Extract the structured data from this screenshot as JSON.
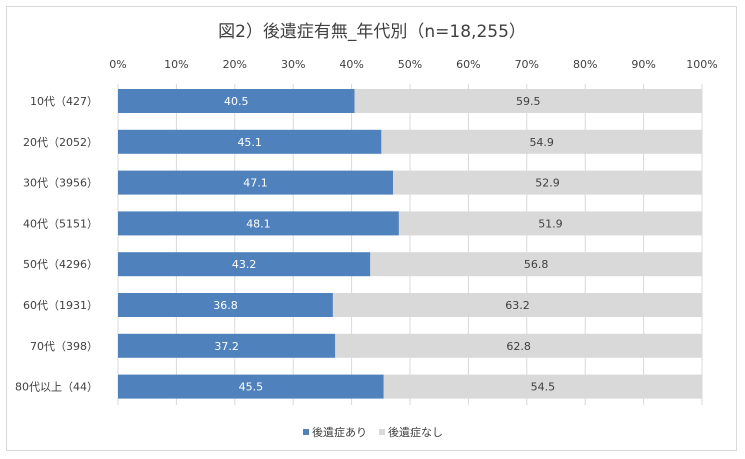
{
  "chart_data": {
    "type": "bar",
    "orientation": "horizontal",
    "stacked": true,
    "title": "図2）後遺症有無_年代別（n=18,255）",
    "categories": [
      "10代（427）",
      "20代（2052）",
      "30代（3956）",
      "40代（5151）",
      "50代（4296）",
      "60代（1931）",
      "70代（398）",
      "80代以上（44）"
    ],
    "series": [
      {
        "name": "後遺症あり",
        "color": "#4f81bd",
        "values": [
          40.5,
          45.1,
          47.1,
          48.1,
          43.2,
          36.8,
          37.2,
          45.5
        ]
      },
      {
        "name": "後遺症なし",
        "color": "#d9d9d9",
        "values": [
          59.5,
          54.9,
          52.9,
          51.9,
          56.8,
          63.2,
          62.8,
          54.5
        ]
      }
    ],
    "xticks": [
      "0%",
      "10%",
      "20%",
      "30%",
      "40%",
      "50%",
      "60%",
      "70%",
      "80%",
      "90%",
      "100%"
    ],
    "xlim": [
      0,
      100
    ],
    "grid": true,
    "legend": "bottom-center"
  }
}
